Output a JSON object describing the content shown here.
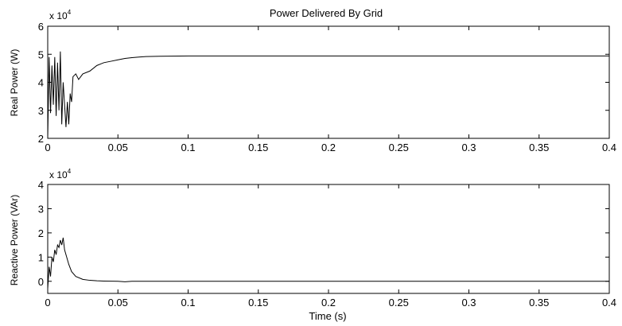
{
  "chart_data": [
    {
      "type": "line",
      "title": "Power Delivered By Grid",
      "xlabel": "",
      "ylabel": "Real Power (W)",
      "exponent_label": "x 10",
      "exponent_power": "4",
      "xlim": [
        0,
        0.4
      ],
      "ylim": [
        2,
        6
      ],
      "xticks": [
        0,
        0.05,
        0.1,
        0.15,
        0.2,
        0.25,
        0.3,
        0.35,
        0.4
      ],
      "xtick_labels": [
        "0",
        "0.05",
        "0.1",
        "0.15",
        "0.2",
        "0.25",
        "0.3",
        "0.35",
        "0.4"
      ],
      "yticks": [
        2,
        3,
        4,
        5,
        6
      ],
      "ytick_labels": [
        "2",
        "3",
        "4",
        "5",
        "6"
      ],
      "grid": false,
      "series": [
        {
          "x": [
            0,
            0.001,
            0.002,
            0.003,
            0.004,
            0.005,
            0.006,
            0.007,
            0.008,
            0.009,
            0.01,
            0.011,
            0.012,
            0.013,
            0.014,
            0.015,
            0.016,
            0.017,
            0.018,
            0.02,
            0.022,
            0.025,
            0.03,
            0.035,
            0.04,
            0.045,
            0.05,
            0.055,
            0.06,
            0.065,
            0.07,
            0.08,
            0.1,
            0.15,
            0.2,
            0.25,
            0.3,
            0.35,
            0.4
          ],
          "values": [
            2.0,
            4.9,
            2.9,
            4.6,
            3.2,
            4.9,
            2.8,
            4.7,
            3.0,
            5.1,
            2.5,
            4.0,
            3.2,
            2.4,
            3.3,
            2.5,
            3.6,
            3.3,
            4.2,
            4.3,
            4.1,
            4.3,
            4.4,
            4.6,
            4.7,
            4.75,
            4.8,
            4.85,
            4.88,
            4.9,
            4.92,
            4.93,
            4.94,
            4.94,
            4.94,
            4.94,
            4.94,
            4.94,
            4.94
          ]
        }
      ]
    },
    {
      "type": "line",
      "title": "",
      "xlabel": "Time (s)",
      "ylabel": "Reactive Power (VAr)",
      "exponent_label": "x 10",
      "exponent_power": "4",
      "xlim": [
        0,
        0.4
      ],
      "ylim": [
        -0.5,
        4
      ],
      "xticks": [
        0,
        0.05,
        0.1,
        0.15,
        0.2,
        0.25,
        0.3,
        0.35,
        0.4
      ],
      "xtick_labels": [
        "0",
        "0.05",
        "0.1",
        "0.15",
        "0.2",
        "0.25",
        "0.3",
        "0.35",
        "0.4"
      ],
      "yticks": [
        0,
        1,
        2,
        3,
        4
      ],
      "ytick_labels": [
        "0",
        "1",
        "2",
        "3",
        "4"
      ],
      "grid": false,
      "series": [
        {
          "x": [
            0,
            0.001,
            0.002,
            0.003,
            0.004,
            0.005,
            0.006,
            0.007,
            0.008,
            0.009,
            0.01,
            0.011,
            0.012,
            0.013,
            0.015,
            0.017,
            0.02,
            0.025,
            0.03,
            0.035,
            0.04,
            0.05,
            0.055,
            0.06,
            0.1,
            0.2,
            0.3,
            0.4
          ],
          "values": [
            -0.3,
            0.6,
            0.2,
            1.0,
            0.8,
            1.3,
            1.1,
            1.5,
            1.4,
            1.7,
            1.5,
            1.8,
            1.3,
            1.1,
            0.7,
            0.4,
            0.2,
            0.08,
            0.04,
            0.02,
            0.01,
            0.0,
            -0.02,
            0.0,
            0.0,
            0.0,
            0.0,
            0.0
          ]
        }
      ]
    }
  ]
}
